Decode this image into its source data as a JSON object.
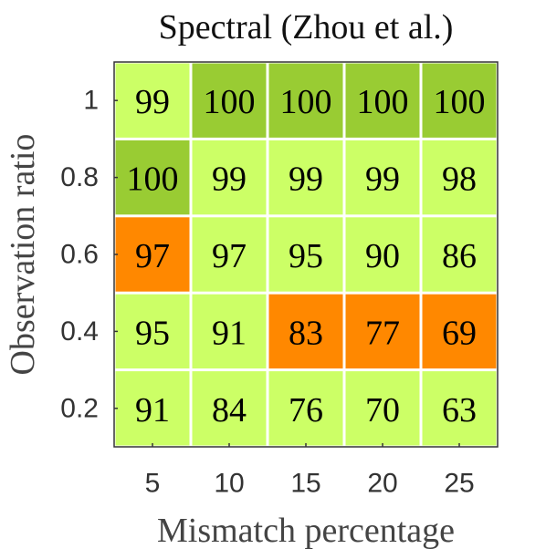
{
  "chart_data": {
    "type": "heatmap",
    "title": "Spectral (Zhou et al.)",
    "x_label": "Mismatch percentage",
    "y_label": "Observation ratio",
    "x": [
      5,
      10,
      15,
      20,
      25
    ],
    "y": [
      0.2,
      0.4,
      0.6,
      0.8,
      1
    ],
    "xlim": [
      2.5,
      27.5
    ],
    "ylim": [
      0.1,
      1.1
    ],
    "xticks": [
      5,
      10,
      15,
      20,
      25
    ],
    "yticks": [
      0.2,
      0.4,
      0.6,
      0.8,
      1
    ],
    "values": [
      [
        91,
        84,
        76,
        70,
        63
      ],
      [
        95,
        91,
        83,
        77,
        69
      ],
      [
        97,
        97,
        95,
        90,
        86
      ],
      [
        100,
        99,
        99,
        99,
        98
      ],
      [
        99,
        100,
        100,
        100,
        100
      ]
    ],
    "colors": [
      [
        "#ccff66",
        "#ccff66",
        "#ccff66",
        "#ccff66",
        "#ccff66"
      ],
      [
        "#ccff66",
        "#ccff66",
        "#ff8800",
        "#ff8800",
        "#ff8800"
      ],
      [
        "#ff8800",
        "#ccff66",
        "#ccff66",
        "#ccff66",
        "#ccff66"
      ],
      [
        "#99cc33",
        "#ccff66",
        "#ccff66",
        "#ccff66",
        "#ccff66"
      ],
      [
        "#ccff66",
        "#99cc33",
        "#99cc33",
        "#99cc33",
        "#99cc33"
      ]
    ]
  }
}
